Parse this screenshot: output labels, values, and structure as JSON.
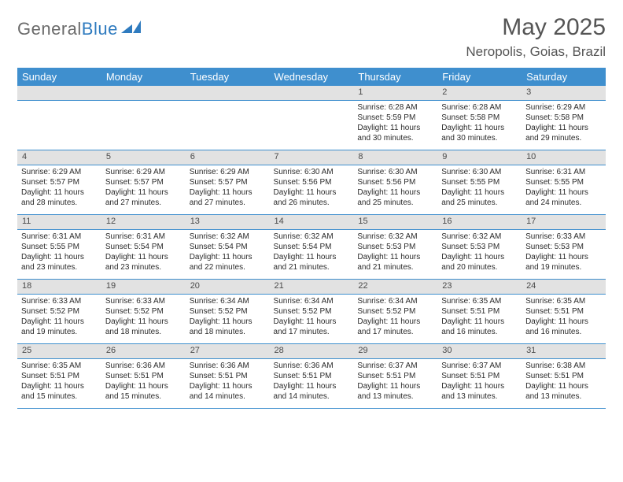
{
  "brand": {
    "part1": "General",
    "part2": "Blue"
  },
  "title": "May 2025",
  "subtitle": "Neropolis, Goias, Brazil",
  "colors": {
    "header_bg": "#3f8fce",
    "header_text": "#ffffff",
    "daynum_bg": "#e2e2e2",
    "border": "#3f8fce",
    "title_color": "#555555",
    "logo_gray": "#6a6a6a",
    "logo_blue": "#2f7bbf"
  },
  "day_headers": [
    "Sunday",
    "Monday",
    "Tuesday",
    "Wednesday",
    "Thursday",
    "Friday",
    "Saturday"
  ],
  "weeks": [
    [
      {
        "n": "",
        "sunrise": "",
        "sunset": "",
        "daylight": ""
      },
      {
        "n": "",
        "sunrise": "",
        "sunset": "",
        "daylight": ""
      },
      {
        "n": "",
        "sunrise": "",
        "sunset": "",
        "daylight": ""
      },
      {
        "n": "",
        "sunrise": "",
        "sunset": "",
        "daylight": ""
      },
      {
        "n": "1",
        "sunrise": "Sunrise: 6:28 AM",
        "sunset": "Sunset: 5:59 PM",
        "daylight": "Daylight: 11 hours and 30 minutes."
      },
      {
        "n": "2",
        "sunrise": "Sunrise: 6:28 AM",
        "sunset": "Sunset: 5:58 PM",
        "daylight": "Daylight: 11 hours and 30 minutes."
      },
      {
        "n": "3",
        "sunrise": "Sunrise: 6:29 AM",
        "sunset": "Sunset: 5:58 PM",
        "daylight": "Daylight: 11 hours and 29 minutes."
      }
    ],
    [
      {
        "n": "4",
        "sunrise": "Sunrise: 6:29 AM",
        "sunset": "Sunset: 5:57 PM",
        "daylight": "Daylight: 11 hours and 28 minutes."
      },
      {
        "n": "5",
        "sunrise": "Sunrise: 6:29 AM",
        "sunset": "Sunset: 5:57 PM",
        "daylight": "Daylight: 11 hours and 27 minutes."
      },
      {
        "n": "6",
        "sunrise": "Sunrise: 6:29 AM",
        "sunset": "Sunset: 5:57 PM",
        "daylight": "Daylight: 11 hours and 27 minutes."
      },
      {
        "n": "7",
        "sunrise": "Sunrise: 6:30 AM",
        "sunset": "Sunset: 5:56 PM",
        "daylight": "Daylight: 11 hours and 26 minutes."
      },
      {
        "n": "8",
        "sunrise": "Sunrise: 6:30 AM",
        "sunset": "Sunset: 5:56 PM",
        "daylight": "Daylight: 11 hours and 25 minutes."
      },
      {
        "n": "9",
        "sunrise": "Sunrise: 6:30 AM",
        "sunset": "Sunset: 5:55 PM",
        "daylight": "Daylight: 11 hours and 25 minutes."
      },
      {
        "n": "10",
        "sunrise": "Sunrise: 6:31 AM",
        "sunset": "Sunset: 5:55 PM",
        "daylight": "Daylight: 11 hours and 24 minutes."
      }
    ],
    [
      {
        "n": "11",
        "sunrise": "Sunrise: 6:31 AM",
        "sunset": "Sunset: 5:55 PM",
        "daylight": "Daylight: 11 hours and 23 minutes."
      },
      {
        "n": "12",
        "sunrise": "Sunrise: 6:31 AM",
        "sunset": "Sunset: 5:54 PM",
        "daylight": "Daylight: 11 hours and 23 minutes."
      },
      {
        "n": "13",
        "sunrise": "Sunrise: 6:32 AM",
        "sunset": "Sunset: 5:54 PM",
        "daylight": "Daylight: 11 hours and 22 minutes."
      },
      {
        "n": "14",
        "sunrise": "Sunrise: 6:32 AM",
        "sunset": "Sunset: 5:54 PM",
        "daylight": "Daylight: 11 hours and 21 minutes."
      },
      {
        "n": "15",
        "sunrise": "Sunrise: 6:32 AM",
        "sunset": "Sunset: 5:53 PM",
        "daylight": "Daylight: 11 hours and 21 minutes."
      },
      {
        "n": "16",
        "sunrise": "Sunrise: 6:32 AM",
        "sunset": "Sunset: 5:53 PM",
        "daylight": "Daylight: 11 hours and 20 minutes."
      },
      {
        "n": "17",
        "sunrise": "Sunrise: 6:33 AM",
        "sunset": "Sunset: 5:53 PM",
        "daylight": "Daylight: 11 hours and 19 minutes."
      }
    ],
    [
      {
        "n": "18",
        "sunrise": "Sunrise: 6:33 AM",
        "sunset": "Sunset: 5:52 PM",
        "daylight": "Daylight: 11 hours and 19 minutes."
      },
      {
        "n": "19",
        "sunrise": "Sunrise: 6:33 AM",
        "sunset": "Sunset: 5:52 PM",
        "daylight": "Daylight: 11 hours and 18 minutes."
      },
      {
        "n": "20",
        "sunrise": "Sunrise: 6:34 AM",
        "sunset": "Sunset: 5:52 PM",
        "daylight": "Daylight: 11 hours and 18 minutes."
      },
      {
        "n": "21",
        "sunrise": "Sunrise: 6:34 AM",
        "sunset": "Sunset: 5:52 PM",
        "daylight": "Daylight: 11 hours and 17 minutes."
      },
      {
        "n": "22",
        "sunrise": "Sunrise: 6:34 AM",
        "sunset": "Sunset: 5:52 PM",
        "daylight": "Daylight: 11 hours and 17 minutes."
      },
      {
        "n": "23",
        "sunrise": "Sunrise: 6:35 AM",
        "sunset": "Sunset: 5:51 PM",
        "daylight": "Daylight: 11 hours and 16 minutes."
      },
      {
        "n": "24",
        "sunrise": "Sunrise: 6:35 AM",
        "sunset": "Sunset: 5:51 PM",
        "daylight": "Daylight: 11 hours and 16 minutes."
      }
    ],
    [
      {
        "n": "25",
        "sunrise": "Sunrise: 6:35 AM",
        "sunset": "Sunset: 5:51 PM",
        "daylight": "Daylight: 11 hours and 15 minutes."
      },
      {
        "n": "26",
        "sunrise": "Sunrise: 6:36 AM",
        "sunset": "Sunset: 5:51 PM",
        "daylight": "Daylight: 11 hours and 15 minutes."
      },
      {
        "n": "27",
        "sunrise": "Sunrise: 6:36 AM",
        "sunset": "Sunset: 5:51 PM",
        "daylight": "Daylight: 11 hours and 14 minutes."
      },
      {
        "n": "28",
        "sunrise": "Sunrise: 6:36 AM",
        "sunset": "Sunset: 5:51 PM",
        "daylight": "Daylight: 11 hours and 14 minutes."
      },
      {
        "n": "29",
        "sunrise": "Sunrise: 6:37 AM",
        "sunset": "Sunset: 5:51 PM",
        "daylight": "Daylight: 11 hours and 13 minutes."
      },
      {
        "n": "30",
        "sunrise": "Sunrise: 6:37 AM",
        "sunset": "Sunset: 5:51 PM",
        "daylight": "Daylight: 11 hours and 13 minutes."
      },
      {
        "n": "31",
        "sunrise": "Sunrise: 6:38 AM",
        "sunset": "Sunset: 5:51 PM",
        "daylight": "Daylight: 11 hours and 13 minutes."
      }
    ]
  ]
}
